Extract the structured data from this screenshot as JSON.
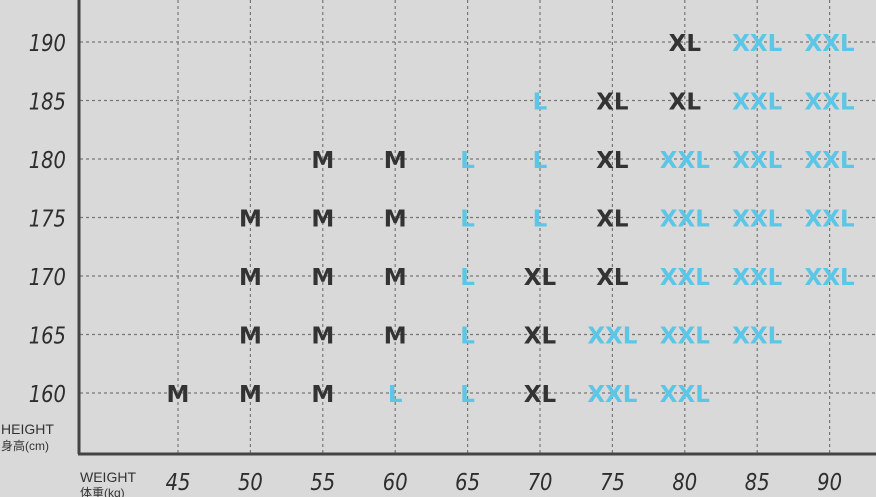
{
  "chart_data": {
    "type": "table",
    "title": "",
    "ylabel": "HEIGHT",
    "ylabel_cn": "身高(cm)",
    "xlabel": "WEIGHT",
    "xlabel_cn": "体重(kg)",
    "x": [
      45,
      50,
      55,
      60,
      65,
      70,
      75,
      80,
      85,
      90
    ],
    "y": [
      160,
      165,
      170,
      175,
      180,
      185,
      190
    ],
    "grid": true,
    "colors": {
      "M": "#333333",
      "XL": "#333333",
      "L": "#5cc6e6",
      "XXL": "#5cc6e6",
      "background": "#d9d9d9"
    },
    "cells": [
      {
        "height": 190,
        "sizes": [
          null,
          null,
          null,
          null,
          null,
          null,
          null,
          "XL",
          "XXL",
          "XXL"
        ]
      },
      {
        "height": 185,
        "sizes": [
          null,
          null,
          null,
          null,
          null,
          "L",
          "XL",
          "XL",
          "XXL",
          "XXL"
        ]
      },
      {
        "height": 180,
        "sizes": [
          null,
          null,
          "M",
          "M",
          "L",
          "L",
          "XL",
          "XXL",
          "XXL",
          "XXL"
        ]
      },
      {
        "height": 175,
        "sizes": [
          null,
          "M",
          "M",
          "M",
          "L",
          "L",
          "XL",
          "XXL",
          "XXL",
          "XXL"
        ]
      },
      {
        "height": 170,
        "sizes": [
          null,
          "M",
          "M",
          "M",
          "L",
          "XL",
          "XL",
          "XXL",
          "XXL",
          "XXL"
        ]
      },
      {
        "height": 165,
        "sizes": [
          null,
          "M",
          "M",
          "M",
          "L",
          "XL",
          "XXL",
          "XXL",
          "XXL",
          null
        ]
      },
      {
        "height": 160,
        "sizes": [
          "M",
          "M",
          "M",
          "L",
          "L",
          "XL",
          "XXL",
          "XXL",
          null,
          null
        ]
      }
    ]
  }
}
